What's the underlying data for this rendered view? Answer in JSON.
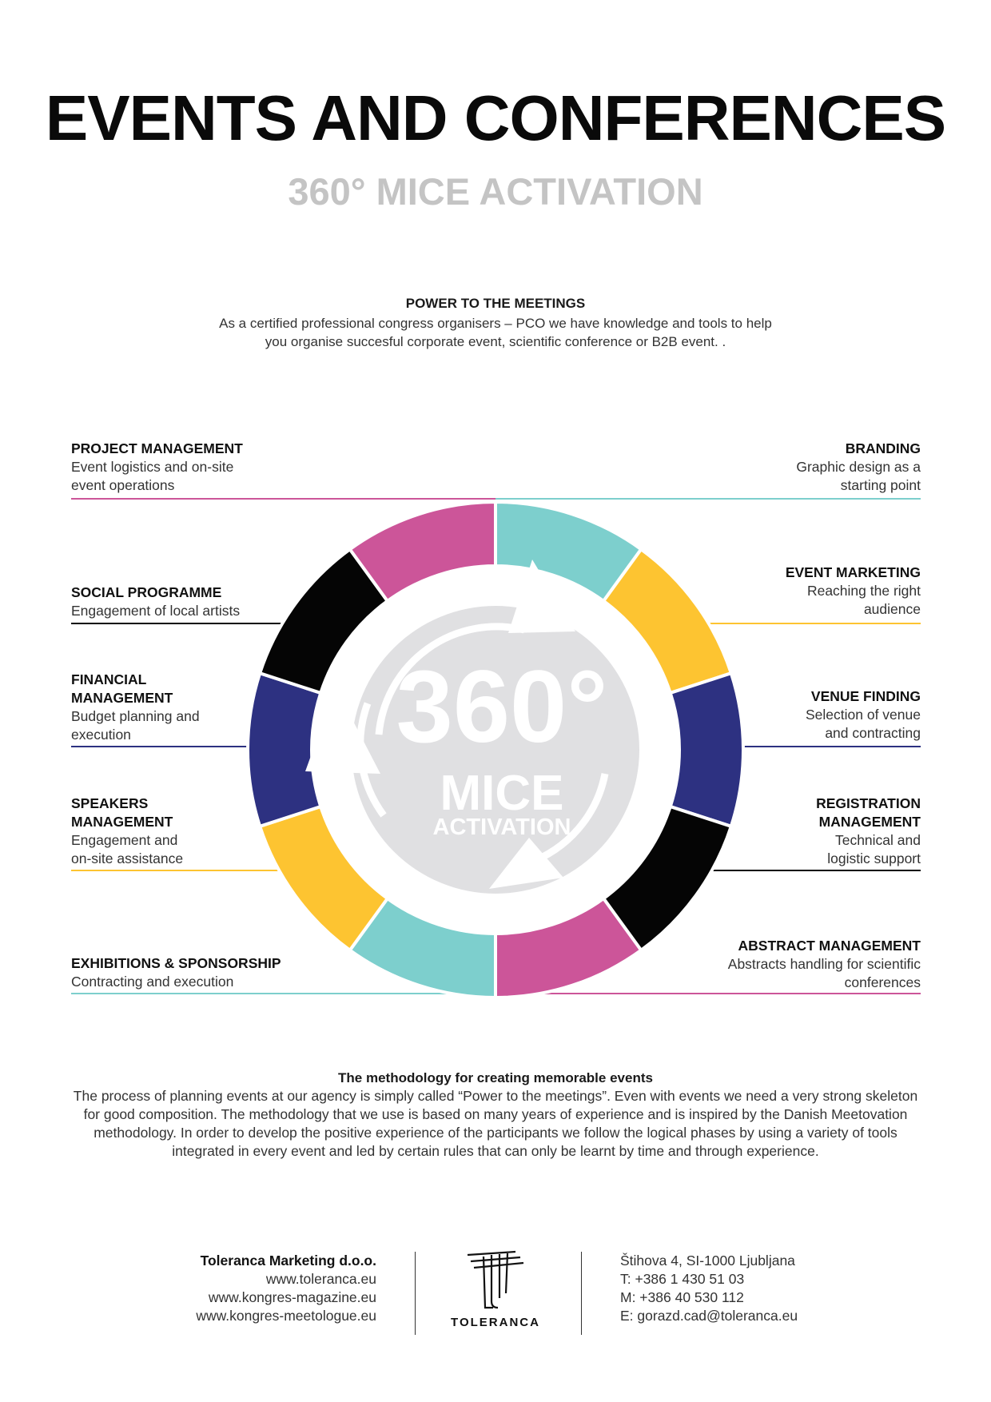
{
  "header": {
    "title": "EVENTS AND CONFERENCES",
    "subtitle": "360° MICE ACTIVATION"
  },
  "intro": {
    "heading": "POWER TO THE MEETINGS",
    "text": "As a certified professional congress organisers – PCO we have knowledge and tools to help you organise succesful corporate event, scientific conference or B2B event. ."
  },
  "wheel": {
    "big": "360°",
    "mice": "MICE",
    "activation": "ACTIVATION"
  },
  "colors": {
    "magenta": "#cc5599",
    "teal": "#7dcfcd",
    "yellow": "#fdc431",
    "navy": "#2d3181",
    "black": "#050505",
    "grey": "#e0e0e2"
  },
  "left_items": [
    {
      "title": "PROJECT MANAGEMENT",
      "desc": "Event logistics and on-site event operations",
      "color": "#cc5599"
    },
    {
      "title": "SOCIAL PROGRAMME",
      "desc": "Engagement of local artists",
      "color": "#050505"
    },
    {
      "title": "FINANCIAL MANAGEMENT",
      "desc": "Budget planning and execution",
      "color": "#2d3181"
    },
    {
      "title": "SPEAKERS MANAGEMENT",
      "desc": "Engagement and on-site assistance",
      "color": "#fdc431"
    },
    {
      "title": "EXHIBITIONS & SPONSORSHIP",
      "desc": "Contracting and execution",
      "color": "#7dcfcd"
    }
  ],
  "right_items": [
    {
      "title": "BRANDING",
      "desc": "Graphic design as a starting point",
      "color": "#7dcfcd"
    },
    {
      "title": "EVENT MARKETING",
      "desc": "Reaching the right audience",
      "color": "#fdc431"
    },
    {
      "title": "VENUE FINDING",
      "desc": "Selection of venue and contracting",
      "color": "#2d3181"
    },
    {
      "title": "REGISTRATION MANAGEMENT",
      "desc": "Technical and logistic support",
      "color": "#050505"
    },
    {
      "title": "ABSTRACT MANAGEMENT",
      "desc": "Abstracts handling for scientific conferences",
      "color": "#cc5599"
    }
  ],
  "methodology": {
    "heading": "The methodology for creating memorable events",
    "text": "The process of planning events at our agency is simply called “Power to the meetings”. Even with events we need a very strong skeleton for good composition. The methodology that we use is based on many years of experience and is inspired by the Danish Meetovation methodology. In order to develop the positive experience of the participants we follow the logical phases by using a variety of tools integrated in every event and led by certain rules that can only be learnt by time and through experience."
  },
  "footer": {
    "company": "Toleranca Marketing d.o.o.",
    "web1": "www.toleranca.eu",
    "web2": "www.kongres-magazine.eu",
    "web3": "www.kongres-meetologue.eu",
    "logo_text": "TOLERANCA",
    "address": "Štihova 4, SI-1000 Ljubljana",
    "phone": "T:  +386 1 430 51 03",
    "mobile": "M:  +386 40 530 112",
    "email": "E:  gorazd.cad@toleranca.eu"
  }
}
